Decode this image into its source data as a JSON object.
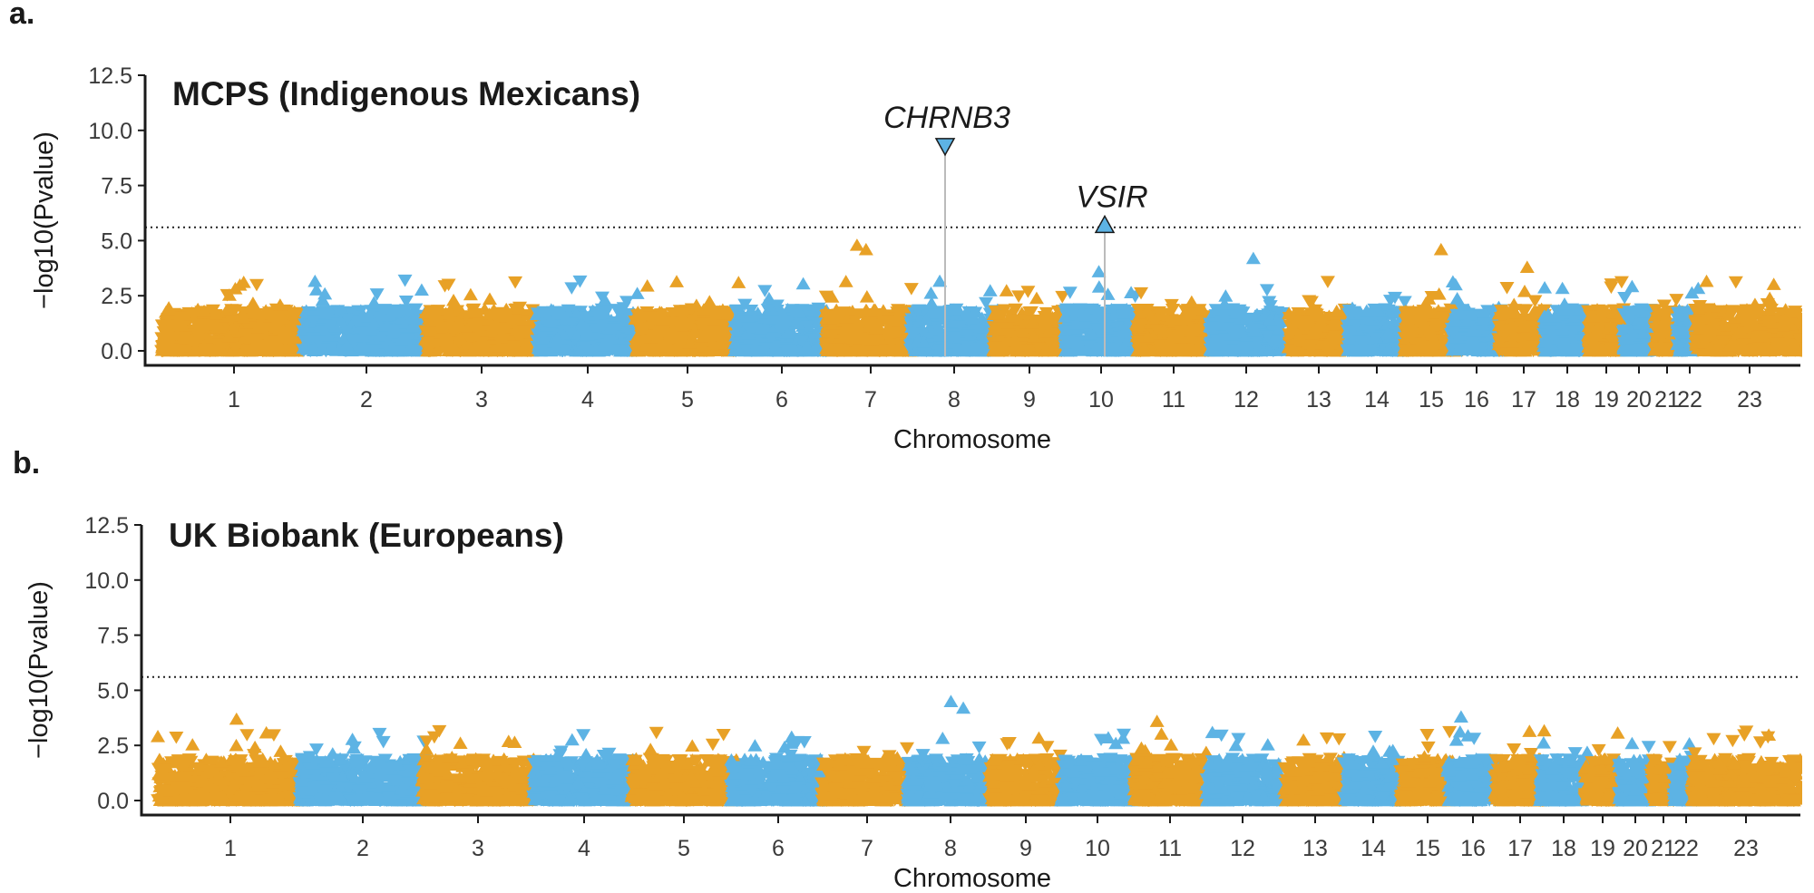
{
  "panels": [
    {
      "label": "a.",
      "chart_data": {
        "type": "scatter",
        "title": "MCPS (Indigenous Mexicans)",
        "xlabel": "Chromosome",
        "ylabel": "−log10(Pvalue)",
        "ylim": [
          0,
          12.5
        ],
        "yticks": [
          "0.0",
          "2.5",
          "5.0",
          "7.5",
          "10.0",
          "12.5"
        ],
        "threshold": 5.6,
        "chromosomes": [
          "1",
          "2",
          "3",
          "4",
          "5",
          "6",
          "7",
          "8",
          "9",
          "10",
          "11",
          "12",
          "13",
          "14",
          "15",
          "16",
          "17",
          "18",
          "19",
          "20",
          "21",
          "22",
          "23"
        ],
        "series_colors": [
          "#E8A126",
          "#5DB3E4"
        ],
        "peaks": [
          {
            "chrom": "7",
            "y": 4.8
          },
          {
            "chrom": "7",
            "y": 4.6
          },
          {
            "chrom": "10",
            "y": 3.6
          },
          {
            "chrom": "12",
            "y": 4.2
          },
          {
            "chrom": "15",
            "y": 4.6
          },
          {
            "chrom": "17",
            "y": 3.8
          }
        ],
        "annotations": [
          {
            "gene": "CHRNB3",
            "chrom": "8",
            "y": 9.3,
            "marker": "down"
          },
          {
            "gene": "VSIR",
            "chrom": "10",
            "y": 5.7,
            "marker": "up"
          }
        ]
      }
    },
    {
      "label": "b.",
      "chart_data": {
        "type": "scatter",
        "title": "UK Biobank (Europeans)",
        "xlabel": "Chromosome",
        "ylabel": "−log10(Pvalue)",
        "ylim": [
          0,
          12.5
        ],
        "yticks": [
          "0.0",
          "2.5",
          "5.0",
          "7.5",
          "10.0",
          "12.5"
        ],
        "threshold": 5.6,
        "chromosomes": [
          "1",
          "2",
          "3",
          "4",
          "5",
          "6",
          "7",
          "8",
          "9",
          "10",
          "11",
          "12",
          "13",
          "14",
          "15",
          "16",
          "17",
          "18",
          "19",
          "20",
          "21",
          "22",
          "23"
        ],
        "series_colors": [
          "#E8A126",
          "#5DB3E4"
        ],
        "peaks": [
          {
            "chrom": "1",
            "y": 3.7
          },
          {
            "chrom": "8",
            "y": 4.5
          },
          {
            "chrom": "8",
            "y": 4.2
          },
          {
            "chrom": "11",
            "y": 3.6
          },
          {
            "chrom": "16",
            "y": 3.8
          }
        ],
        "annotations": []
      }
    }
  ]
}
